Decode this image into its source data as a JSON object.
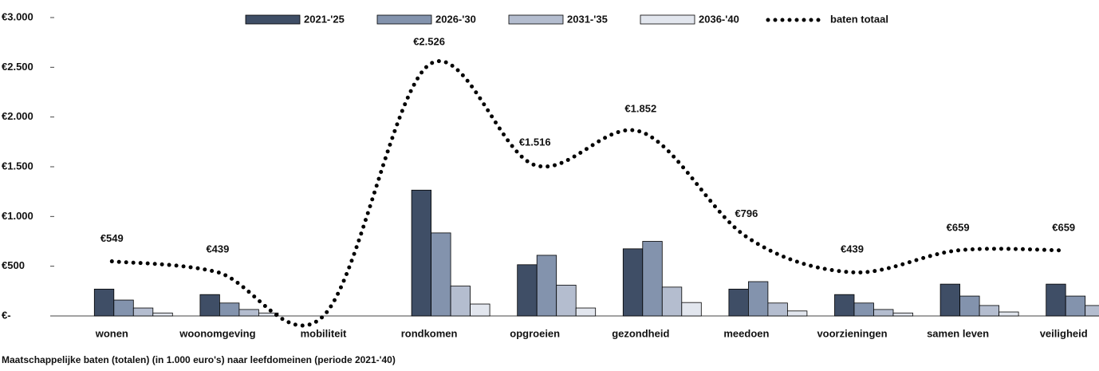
{
  "chart_data": {
    "type": "bar+line",
    "caption": "Maatschappelijke baten (totalen) (in 1.000 euro's) naar leefdomeinen (periode 2021-'40)",
    "categories": [
      "wonen",
      "woonomgeving",
      "mobiliteit",
      "rondkomen",
      "opgroeien",
      "gezondheid",
      "meedoen",
      "voorzieningen",
      "samen leven",
      "veiligheid"
    ],
    "series": [
      {
        "name": "2021-'25",
        "color": "#3f4e66",
        "values": [
          270,
          215,
          0,
          1265,
          515,
          675,
          270,
          215,
          320,
          320
        ]
      },
      {
        "name": "2026-'30",
        "color": "#8393ad",
        "values": [
          160,
          130,
          0,
          835,
          610,
          750,
          345,
          130,
          200,
          200
        ]
      },
      {
        "name": "2031-'35",
        "color": "#b4bdcf",
        "values": [
          80,
          65,
          0,
          300,
          310,
          290,
          130,
          65,
          105,
          105
        ]
      },
      {
        "name": "2036-'40",
        "color": "#e2e6ee",
        "values": [
          30,
          30,
          0,
          120,
          80,
          135,
          50,
          30,
          40,
          40
        ]
      }
    ],
    "line": {
      "name": "baten totaal",
      "color": "#000000",
      "values": [
        549,
        439,
        0,
        2526,
        1516,
        1852,
        796,
        439,
        659,
        659
      ],
      "value_labels": [
        "€549",
        "€439",
        null,
        "€2.526",
        "€1.516",
        "€1.852",
        "€796",
        "€439",
        "€659",
        "€659"
      ]
    },
    "ylim": [
      0,
      3000
    ],
    "yticks": [
      {
        "value": 0,
        "label": "€-"
      },
      {
        "value": 500,
        "label": "€500"
      },
      {
        "value": 1000,
        "label": "€1.000"
      },
      {
        "value": 1500,
        "label": "€1.500"
      },
      {
        "value": 2000,
        "label": "€2.000"
      },
      {
        "value": 2500,
        "label": "€2.500"
      },
      {
        "value": 3000,
        "label": "€3.000"
      }
    ],
    "grid": false
  }
}
